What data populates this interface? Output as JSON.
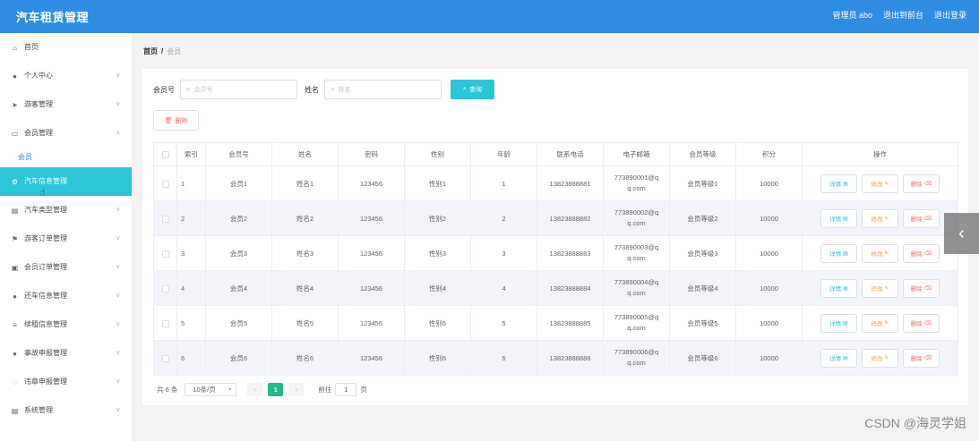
{
  "app": {
    "title": "汽车租赁管理"
  },
  "header": {
    "admin": "管理员 abo",
    "back_to_front": "退出到前台",
    "logout": "退出登录"
  },
  "sidebar": {
    "items": [
      {
        "label": "首页",
        "icon": "home-icon",
        "glyph": "⌂"
      },
      {
        "label": "个人中心",
        "icon": "user-icon",
        "glyph": "●"
      },
      {
        "label": "游客管理",
        "icon": "send-icon",
        "glyph": "➤"
      },
      {
        "label": "会员管理",
        "icon": "card-icon",
        "glyph": "▭"
      },
      {
        "label": "汽车信息管理",
        "icon": "car-icon",
        "glyph": "⚙"
      },
      {
        "label": "汽车类型管理",
        "icon": "list-icon",
        "glyph": "▤"
      },
      {
        "label": "游客订单管理",
        "icon": "flag-icon",
        "glyph": "⚑"
      },
      {
        "label": "会员订单管理",
        "icon": "order-icon",
        "glyph": "▣"
      },
      {
        "label": "还车信息管理",
        "icon": "person-icon",
        "glyph": "●"
      },
      {
        "label": "续租信息管理",
        "icon": "menu-icon",
        "glyph": "≡"
      },
      {
        "label": "事故申报管理",
        "icon": "pin-icon",
        "glyph": "●"
      },
      {
        "label": "违章申报管理",
        "icon": "circle-icon",
        "glyph": "◌"
      },
      {
        "label": "系统管理",
        "icon": "settings-icon",
        "glyph": "▤"
      }
    ],
    "submenu_label": "会员"
  },
  "breadcrumb": {
    "home": "首页",
    "separator": "/",
    "current": "会员"
  },
  "search": {
    "field1_label": "会员号",
    "field1_placeholder": "会员号",
    "field2_label": "姓名",
    "field2_placeholder": "姓名",
    "query_button": "查询"
  },
  "toolbar": {
    "delete_button": "删除"
  },
  "table": {
    "headers": [
      "索引",
      "会员号",
      "姓名",
      "密码",
      "性别",
      "年龄",
      "联系电话",
      "电子邮箱",
      "会员等级",
      "积分",
      "操作"
    ],
    "rows": [
      {
        "index": "1",
        "member_no": "会员1",
        "name": "姓名1",
        "password": "123456",
        "gender": "性别1",
        "age": "1",
        "phone": "13823888881",
        "email1": "773890001@q",
        "email2": "q.com",
        "level": "会员等级1",
        "points": "10000"
      },
      {
        "index": "2",
        "member_no": "会员2",
        "name": "姓名2",
        "password": "123456",
        "gender": "性别2",
        "age": "2",
        "phone": "13823888882",
        "email1": "773890002@q",
        "email2": "q.com",
        "level": "会员等级2",
        "points": "10000"
      },
      {
        "index": "3",
        "member_no": "会员3",
        "name": "姓名3",
        "password": "123456",
        "gender": "性别3",
        "age": "3",
        "phone": "13823888883",
        "email1": "773890003@q",
        "email2": "q.com",
        "level": "会员等级3",
        "points": "10000"
      },
      {
        "index": "4",
        "member_no": "会员4",
        "name": "姓名4",
        "password": "123456",
        "gender": "性别4",
        "age": "4",
        "phone": "13823888884",
        "email1": "773890004@q",
        "email2": "q.com",
        "level": "会员等级4",
        "points": "10000"
      },
      {
        "index": "5",
        "member_no": "会员5",
        "name": "姓名5",
        "password": "123456",
        "gender": "性别5",
        "age": "5",
        "phone": "13823888885",
        "email1": "773890005@q",
        "email2": "q.com",
        "level": "会员等级5",
        "points": "10000"
      },
      {
        "index": "6",
        "member_no": "会员6",
        "name": "姓名6",
        "password": "123456",
        "gender": "性别6",
        "age": "6",
        "phone": "13823888886",
        "email1": "773890006@q",
        "email2": "q.com",
        "level": "会员等级6",
        "points": "10000"
      }
    ],
    "actions": {
      "detail": "详情",
      "edit": "修改",
      "delete": "删除"
    }
  },
  "pagination": {
    "total": "共 6 条",
    "page_size": "10条/页",
    "current_page": "1",
    "goto_label": "前往",
    "goto_value": "1",
    "page_suffix": "页"
  },
  "watermark": "CSDN @海灵学姐",
  "colors": {
    "header": "#2f8de4",
    "accent": "#2bc5d8",
    "active_page": "#1ebc90",
    "danger": "#f56c6c",
    "warning": "#e6a23c"
  }
}
